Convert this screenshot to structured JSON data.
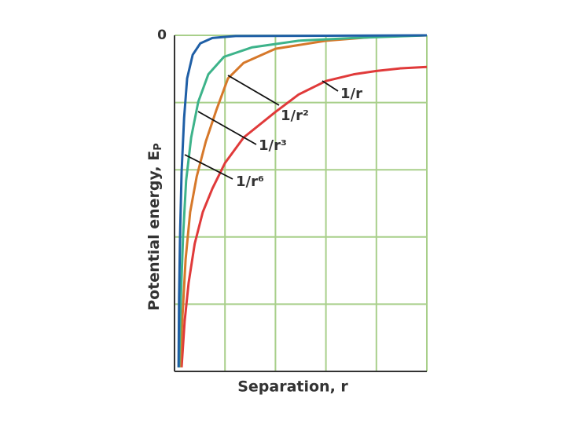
{
  "chart_data": {
    "type": "line",
    "x_label": "Separation, r",
    "y_label": "Potential energy, E",
    "y_label_subscript": "P",
    "xlim": [
      0,
      5
    ],
    "ylim": [
      -5,
      0
    ],
    "xticks": [
      {
        "value": 0,
        "label": null
      },
      {
        "value": 1,
        "label": null
      },
      {
        "value": 2,
        "label": null
      },
      {
        "value": 3,
        "label": null
      },
      {
        "value": 4,
        "label": null
      },
      {
        "value": 5,
        "label": null
      }
    ],
    "yticks": [
      0,
      {
        "value": -1,
        "label": null
      },
      {
        "value": -2,
        "label": null
      },
      {
        "value": -3,
        "label": null
      },
      {
        "value": -4,
        "label": null
      },
      {
        "value": -5,
        "label": null
      }
    ],
    "grid": true,
    "grid_color": "#a8cf8a",
    "series": [
      {
        "name": "1/r",
        "color": "#e03a3a",
        "x": [
          0.14,
          0.2,
          0.28,
          0.4,
          0.56,
          0.75,
          1.0,
          1.37,
          2.0,
          2.46,
          3.0,
          3.55,
          4.0,
          4.49,
          5.0
        ],
        "values": [
          -4.94,
          -4.26,
          -3.68,
          -3.1,
          -2.63,
          -2.28,
          -1.9,
          -1.52,
          -1.14,
          -0.88,
          -0.68,
          -0.58,
          -0.53,
          -0.49,
          -0.47
        ]
      },
      {
        "name": "1/r²",
        "color": "#d6782a",
        "x": [
          0.11,
          0.16,
          0.22,
          0.31,
          0.44,
          0.62,
          0.83,
          1.06,
          1.37,
          2.0,
          3.0,
          4.0,
          5.0
        ],
        "values": [
          -4.94,
          -4.15,
          -3.33,
          -2.63,
          -2.1,
          -1.58,
          -1.11,
          -0.64,
          -0.41,
          -0.2,
          -0.08,
          -0.02,
          0
        ]
      },
      {
        "name": "1/r³",
        "color": "#3db38a",
        "x": [
          0.09,
          0.12,
          0.17,
          0.23,
          0.33,
          0.47,
          0.67,
          0.98,
          1.53,
          2.46,
          3.55,
          5.0
        ],
        "values": [
          -4.94,
          -4.03,
          -2.98,
          -2.16,
          -1.52,
          -0.99,
          -0.58,
          -0.32,
          -0.18,
          -0.08,
          -0.04,
          0
        ]
      },
      {
        "name": "1/r⁶",
        "color": "#1f5fa6",
        "x": [
          0.08,
          0.09,
          0.11,
          0.14,
          0.19,
          0.25,
          0.36,
          0.51,
          0.75,
          1.21,
          5.0
        ],
        "values": [
          -4.94,
          -3.91,
          -2.98,
          -2.04,
          -1.23,
          -0.64,
          -0.29,
          -0.12,
          -0.04,
          -0.01,
          0
        ]
      }
    ]
  }
}
